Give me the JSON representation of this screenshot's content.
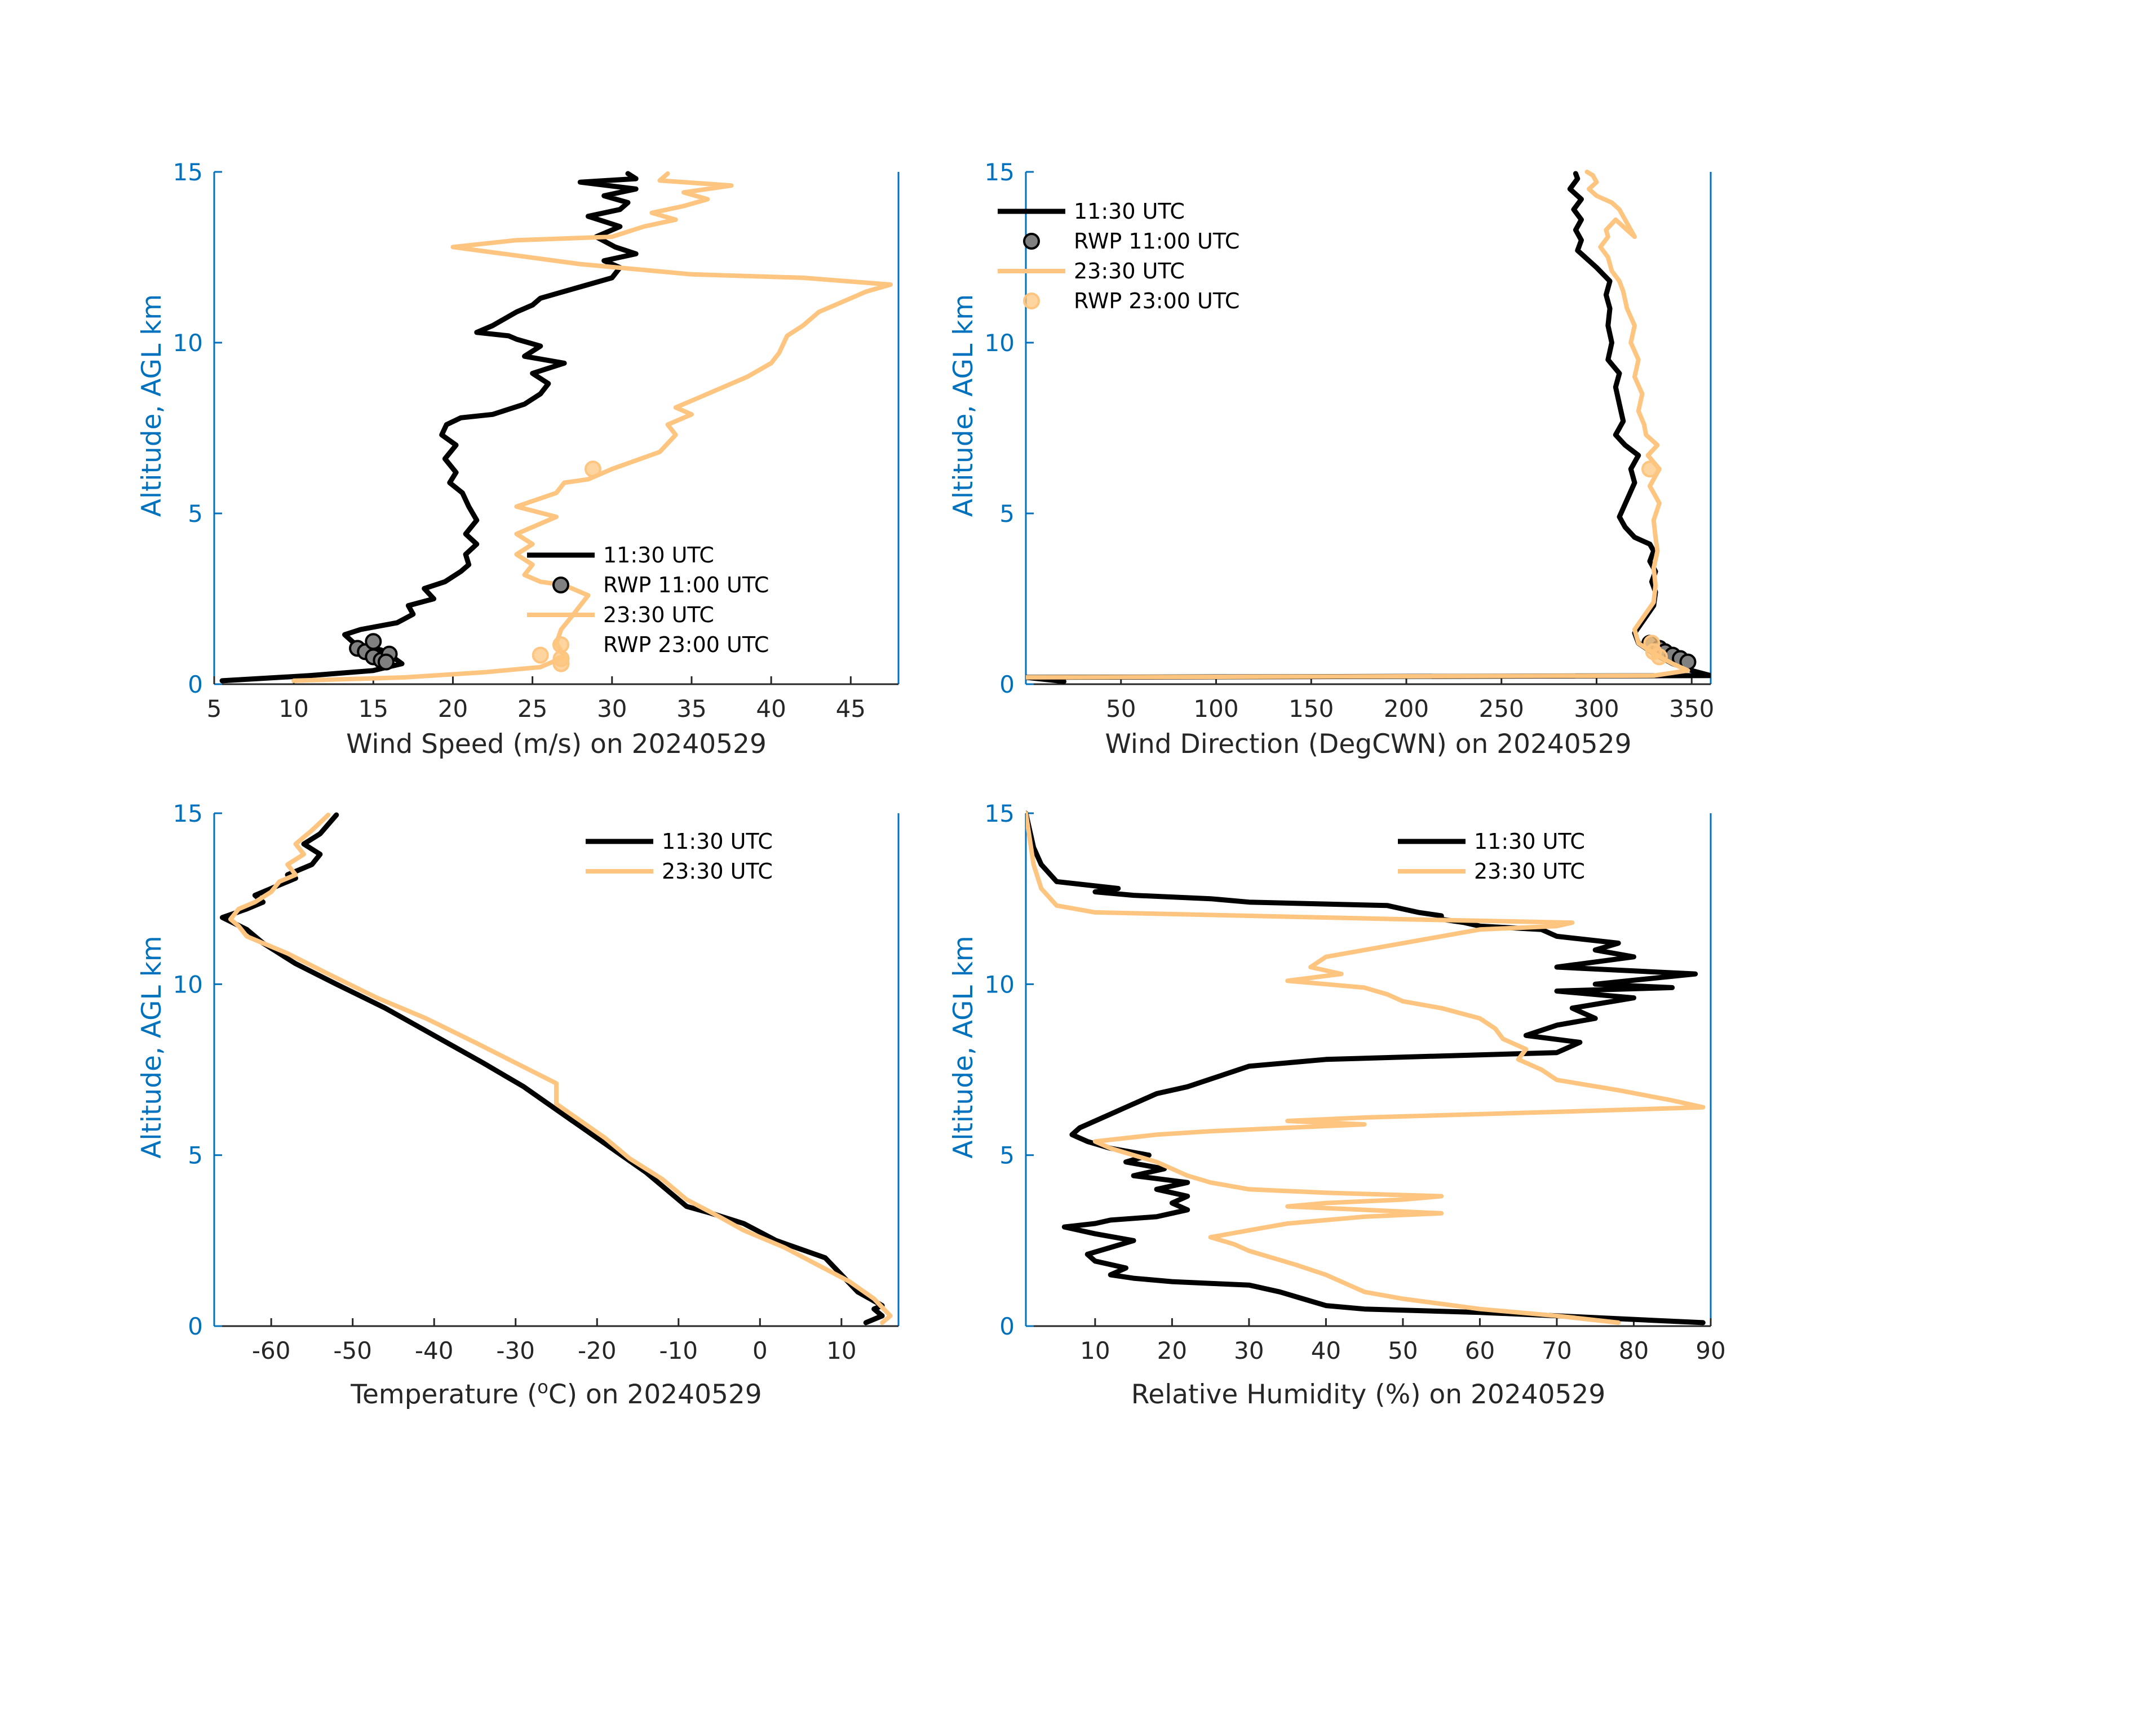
{
  "colors": {
    "series_1130": "#000000",
    "series_2330": "#fdc57f",
    "axis_y": "#0072bd",
    "axis_x": "#262626",
    "rwp_1100_fill": "#808080"
  },
  "chart_data": [
    {
      "id": "wind_speed",
      "type": "line",
      "xlabel": "Wind Speed (m/s) on 20240529",
      "ylabel": "Altitude, AGL km",
      "xlim": [
        5,
        48
      ],
      "ylim": [
        0,
        15
      ],
      "xticks": [
        5,
        10,
        15,
        20,
        25,
        30,
        35,
        40,
        45
      ],
      "yticks": [
        0,
        5,
        10,
        15
      ],
      "legend_position": "lower-right",
      "legend": [
        "11:30 UTC",
        "RWP 11:00 UTC",
        "23:30 UTC",
        "RWP 23:00 UTC"
      ],
      "series": [
        {
          "name": "11:30 UTC",
          "kind": "line",
          "x": [
            5.5,
            11,
            15,
            16.8,
            16.2,
            15.5,
            13.8,
            13.2,
            14.2,
            16.5,
            17.5,
            17.2,
            18.8,
            18.2,
            19.5,
            20.5,
            21.0,
            20.8,
            21.5,
            20.8,
            21.5,
            21.0,
            20.6,
            19.8,
            20.2,
            19.5,
            20.2,
            19.3,
            19.6,
            20.5,
            22.5,
            24.5,
            25.5,
            26.0,
            25.0,
            27.0,
            24.5,
            25.5,
            24.0,
            23.5,
            21.5,
            22.5,
            24.0,
            25.0,
            25.5,
            27.0,
            28.5,
            30.0,
            30.5,
            29.5,
            31.5,
            30.2,
            29.0,
            30.5,
            28.5,
            30.5,
            31.0,
            29.5,
            31.5,
            28.0,
            31.5,
            31.0
          ],
          "y": [
            0.1,
            0.25,
            0.4,
            0.6,
            0.8,
            1.0,
            1.2,
            1.45,
            1.6,
            1.8,
            2.05,
            2.3,
            2.5,
            2.8,
            3.0,
            3.3,
            3.5,
            3.8,
            4.1,
            4.4,
            4.8,
            5.2,
            5.6,
            5.9,
            6.2,
            6.6,
            7.0,
            7.3,
            7.6,
            7.8,
            7.9,
            8.2,
            8.5,
            8.8,
            9.1,
            9.4,
            9.6,
            9.9,
            10.1,
            10.2,
            10.3,
            10.5,
            10.9,
            11.1,
            11.3,
            11.5,
            11.7,
            11.9,
            12.2,
            12.4,
            12.6,
            12.8,
            13.1,
            13.4,
            13.7,
            13.9,
            14.1,
            14.3,
            14.5,
            14.7,
            14.8,
            14.95
          ]
        },
        {
          "name": "RWP 11:00 UTC",
          "kind": "points",
          "x": [
            14.0,
            14.5,
            15.0,
            15.5,
            16.0,
            15.0,
            15.8
          ],
          "y": [
            1.05,
            0.95,
            0.8,
            0.7,
            0.88,
            1.25,
            0.65
          ]
        },
        {
          "name": "23:30 UTC",
          "kind": "line",
          "x": [
            10,
            17,
            22,
            25.5,
            27.0,
            26.5,
            26.8,
            27.5,
            28.0,
            28.5,
            27.0,
            25.5,
            24.5,
            25.0,
            24.0,
            25.0,
            24.0,
            25.5,
            26.5,
            24.0,
            26.5,
            27.0,
            28.5,
            30.0,
            33.0,
            34.0,
            33.5,
            35.0,
            34.0,
            35.5,
            37.0,
            38.5,
            40.0,
            40.5,
            41.0,
            42.0,
            43.0,
            44.5,
            46.0,
            47.5,
            42.0,
            35.0,
            28.0,
            20.0,
            24.0,
            30.0,
            32.0,
            34.0,
            32.5,
            34.5,
            36.0,
            34.5,
            37.5,
            33.0,
            33.5
          ],
          "y": [
            0.1,
            0.2,
            0.35,
            0.5,
            0.8,
            1.2,
            1.6,
            2.0,
            2.3,
            2.6,
            2.9,
            3.0,
            3.2,
            3.5,
            3.8,
            4.1,
            4.4,
            4.7,
            4.9,
            5.2,
            5.6,
            5.9,
            6.0,
            6.3,
            6.8,
            7.3,
            7.6,
            7.9,
            8.1,
            8.4,
            8.7,
            9.0,
            9.4,
            9.7,
            10.2,
            10.5,
            10.9,
            11.2,
            11.5,
            11.7,
            11.9,
            12.0,
            12.3,
            12.8,
            13.0,
            13.1,
            13.4,
            13.6,
            13.8,
            14.0,
            14.2,
            14.4,
            14.6,
            14.75,
            14.95
          ]
        },
        {
          "name": "RWP 23:00 UTC",
          "kind": "points",
          "x": [
            26.8,
            25.5,
            26.8,
            28.8
          ],
          "y": [
            0.6,
            0.85,
            0.75,
            6.3
          ]
        }
      ]
    },
    {
      "id": "wind_direction",
      "type": "line",
      "xlabel": "Wind Direction (DegCWN) on 20240529",
      "ylabel": "Altitude, AGL km",
      "xlim": [
        0,
        360
      ],
      "ylim": [
        0,
        15
      ],
      "xticks": [
        50,
        100,
        150,
        200,
        250,
        300,
        350
      ],
      "yticks": [
        0,
        5,
        10,
        15
      ],
      "legend_position": "top-left",
      "legend": [
        "11:30 UTC",
        "RWP 11:00 UTC",
        "23:30 UTC",
        "RWP 23:00 UTC"
      ],
      "series": [
        {
          "name": "11:30 UTC",
          "kind": "line",
          "x": [
            20,
            0,
            360,
            350,
            340,
            330,
            322,
            320,
            325,
            330,
            331,
            329,
            331,
            328,
            330,
            328,
            320,
            315,
            312,
            316,
            320,
            318,
            322,
            315,
            310,
            314,
            312,
            310,
            312,
            306,
            308,
            306,
            307,
            305,
            307,
            300,
            294,
            290,
            292,
            289,
            292,
            288,
            292,
            286,
            290,
            289
          ],
          "y": [
            0.08,
            0.2,
            0.25,
            0.4,
            0.6,
            0.9,
            1.2,
            1.5,
            1.9,
            2.3,
            2.7,
            3.0,
            3.3,
            3.6,
            3.9,
            4.1,
            4.3,
            4.6,
            4.9,
            5.4,
            5.9,
            6.3,
            6.7,
            7.0,
            7.3,
            7.7,
            8.2,
            8.7,
            9.1,
            9.5,
            10.0,
            10.5,
            11.0,
            11.4,
            11.8,
            12.2,
            12.5,
            12.7,
            13.0,
            13.3,
            13.6,
            13.9,
            14.2,
            14.5,
            14.8,
            14.95
          ]
        },
        {
          "name": "RWP 11:00 UTC",
          "kind": "points",
          "x": [
            328,
            333,
            336,
            340,
            344,
            348
          ],
          "y": [
            1.2,
            1.05,
            0.95,
            0.85,
            0.75,
            0.65
          ]
        },
        {
          "name": "23:30 UTC",
          "kind": "line",
          "x": [
            0,
            330,
            348,
            340,
            330,
            322,
            320,
            325,
            330,
            331,
            330,
            332,
            331,
            330,
            333,
            328,
            333,
            327,
            332,
            326,
            325,
            322,
            324,
            320,
            322,
            318,
            320,
            316,
            314,
            312,
            308,
            306,
            302,
            306,
            305,
            310,
            320,
            312,
            308,
            300,
            296,
            300,
            298,
            295
          ],
          "y": [
            0.2,
            0.25,
            0.4,
            0.6,
            0.9,
            1.2,
            1.6,
            2.0,
            2.4,
            2.9,
            3.4,
            3.9,
            4.3,
            4.8,
            5.3,
            5.8,
            6.3,
            6.7,
            7.0,
            7.3,
            7.6,
            8.0,
            8.5,
            9.0,
            9.5,
            10.0,
            10.5,
            11.0,
            11.5,
            11.8,
            12.1,
            12.5,
            12.8,
            13.1,
            13.3,
            13.6,
            13.1,
            13.9,
            14.1,
            14.3,
            14.5,
            14.7,
            14.9,
            15.0
          ]
        },
        {
          "name": "RWP 23:00 UTC",
          "kind": "points",
          "x": [
            328,
            329,
            330,
            333
          ],
          "y": [
            6.3,
            1.2,
            0.95,
            0.8
          ]
        }
      ]
    },
    {
      "id": "temperature",
      "type": "line",
      "xlabel_prefix": "Temperature (",
      "xlabel_sup": "o",
      "xlabel_suffix": "C) on 20240529",
      "ylabel": "Altitude, AGL km",
      "xlim": [
        -67,
        17
      ],
      "ylim": [
        0,
        15
      ],
      "xticks": [
        -60,
        -50,
        -40,
        -30,
        -20,
        -10,
        0,
        10
      ],
      "yticks": [
        0,
        5,
        10,
        15
      ],
      "legend_position": "top-right",
      "legend": [
        "11:30 UTC",
        "23:30 UTC"
      ],
      "series": [
        {
          "name": "11:30 UTC",
          "kind": "line",
          "x": [
            13,
            15,
            14,
            15,
            12,
            10,
            8,
            2,
            -2,
            -6,
            -9,
            -11,
            -14,
            -17,
            -20,
            -23,
            -26,
            -29,
            -34,
            -40,
            -46,
            -52,
            -57,
            -61,
            -63,
            -66,
            -63,
            -61,
            -62,
            -59,
            -57,
            -58,
            -55,
            -54,
            -56,
            -54,
            -52
          ],
          "y": [
            0.1,
            0.3,
            0.5,
            0.6,
            1.0,
            1.5,
            2.0,
            2.5,
            3.0,
            3.3,
            3.5,
            3.9,
            4.5,
            5.0,
            5.5,
            6.0,
            6.5,
            7.0,
            7.7,
            8.5,
            9.3,
            10.0,
            10.6,
            11.2,
            11.6,
            11.95,
            12.2,
            12.4,
            12.6,
            12.9,
            13.1,
            13.2,
            13.5,
            13.8,
            14.1,
            14.4,
            14.95
          ]
        },
        {
          "name": "23:30 UTC",
          "kind": "line",
          "x": [
            15,
            16,
            14,
            11,
            7,
            3,
            -2,
            -5,
            -9,
            -12,
            -16,
            -19,
            -22,
            -25,
            -25,
            -30,
            -35,
            -41,
            -47,
            -53,
            -58,
            -63,
            -64,
            -65,
            -64,
            -62,
            -60,
            -59,
            -57,
            -58,
            -56,
            -57,
            -55,
            -53
          ],
          "y": [
            0.1,
            0.3,
            0.8,
            1.3,
            1.8,
            2.3,
            2.8,
            3.2,
            3.7,
            4.3,
            4.9,
            5.5,
            6.0,
            6.5,
            7.1,
            7.7,
            8.3,
            9.0,
            9.6,
            10.3,
            10.9,
            11.4,
            11.7,
            11.9,
            12.2,
            12.4,
            12.7,
            13.0,
            13.2,
            13.5,
            13.8,
            14.1,
            14.5,
            14.95
          ]
        }
      ]
    },
    {
      "id": "relative_humidity",
      "type": "line",
      "xlabel": "Relative Humidity (%) on 20240529",
      "ylabel": "Altitude, AGL km",
      "xlim": [
        1,
        90
      ],
      "ylim": [
        0,
        15
      ],
      "xticks": [
        10,
        20,
        30,
        40,
        50,
        60,
        70,
        80,
        90
      ],
      "yticks": [
        0,
        5,
        10,
        15
      ],
      "legend_position": "top-right",
      "legend": [
        "11:30 UTC",
        "23:30 UTC"
      ],
      "series": [
        {
          "name": "11:30 UTC",
          "kind": "line",
          "x": [
            89,
            70,
            60,
            45,
            40,
            37,
            34,
            30,
            25,
            20,
            15,
            12,
            14,
            10,
            9,
            12,
            15,
            10,
            6,
            10,
            12,
            18,
            22,
            20,
            22,
            18,
            22,
            15,
            19,
            14,
            17,
            12,
            9,
            7,
            8,
            10,
            12,
            14,
            16,
            18,
            22,
            26,
            30,
            40,
            55,
            70,
            73,
            66,
            70,
            75,
            72,
            80,
            70,
            85,
            75,
            88,
            70,
            80,
            75,
            78,
            70,
            68,
            60,
            58,
            55,
            55,
            52,
            50,
            48,
            30,
            25,
            15,
            10,
            13,
            5,
            3,
            2,
            1
          ],
          "y": [
            0.1,
            0.3,
            0.4,
            0.5,
            0.6,
            0.8,
            1.0,
            1.2,
            1.25,
            1.3,
            1.4,
            1.5,
            1.7,
            1.9,
            2.1,
            2.3,
            2.5,
            2.7,
            2.9,
            3.0,
            3.1,
            3.2,
            3.4,
            3.6,
            3.8,
            4.0,
            4.2,
            4.4,
            4.6,
            4.8,
            5.0,
            5.2,
            5.4,
            5.6,
            5.8,
            6.0,
            6.2,
            6.4,
            6.6,
            6.8,
            7.0,
            7.3,
            7.6,
            7.8,
            7.9,
            8.0,
            8.3,
            8.5,
            8.8,
            9.0,
            9.3,
            9.6,
            9.8,
            9.9,
            10.0,
            10.3,
            10.5,
            10.8,
            11.0,
            11.2,
            11.4,
            11.6,
            11.7,
            11.8,
            11.9,
            12.0,
            12.1,
            12.2,
            12.3,
            12.4,
            12.5,
            12.6,
            12.7,
            12.8,
            13.0,
            13.5,
            14.0,
            15.0
          ]
        },
        {
          "name": "23:30 UTC",
          "kind": "line",
          "x": [
            78,
            70,
            60,
            50,
            45,
            42,
            40,
            36,
            33,
            30,
            28,
            25,
            30,
            35,
            40,
            45,
            55,
            45,
            35,
            40,
            50,
            55,
            40,
            30,
            25,
            22,
            20,
            18,
            15,
            12,
            10,
            18,
            25,
            35,
            45,
            35,
            45,
            60,
            75,
            89,
            85,
            78,
            70,
            68,
            65,
            66,
            63,
            62,
            60,
            55,
            50,
            48,
            45,
            40,
            35,
            42,
            38,
            40,
            45,
            50,
            55,
            60,
            70,
            72,
            50,
            30,
            10,
            5,
            3,
            2,
            1
          ],
          "y": [
            0.1,
            0.3,
            0.5,
            0.8,
            1.0,
            1.3,
            1.5,
            1.8,
            2.0,
            2.2,
            2.4,
            2.6,
            2.8,
            3.0,
            3.1,
            3.2,
            3.3,
            3.4,
            3.5,
            3.6,
            3.7,
            3.8,
            3.9,
            4.0,
            4.2,
            4.4,
            4.6,
            4.8,
            5.0,
            5.2,
            5.4,
            5.6,
            5.7,
            5.8,
            5.9,
            6.0,
            6.1,
            6.2,
            6.3,
            6.4,
            6.6,
            6.9,
            7.2,
            7.5,
            7.8,
            8.1,
            8.4,
            8.7,
            9.0,
            9.3,
            9.5,
            9.7,
            9.9,
            10.0,
            10.1,
            10.3,
            10.5,
            10.8,
            11.0,
            11.2,
            11.4,
            11.6,
            11.7,
            11.8,
            11.9,
            12.0,
            12.1,
            12.3,
            12.8,
            13.5,
            15.0
          ]
        }
      ]
    }
  ]
}
